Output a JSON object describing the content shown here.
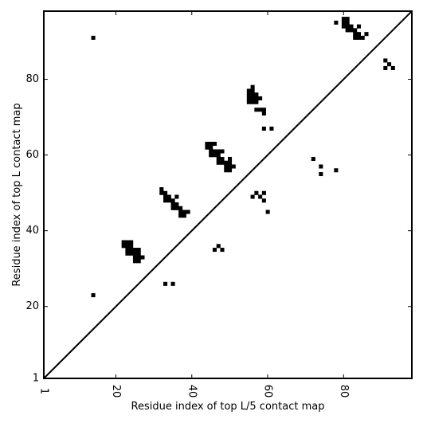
{
  "chart_data": {
    "type": "heatmap",
    "title": "",
    "xlabel": "Residue index of top L/5 contact map",
    "ylabel": "Residue index of top L contact map",
    "xlim": [
      1,
      98
    ],
    "ylim": [
      1,
      98
    ],
    "xticks": [
      1,
      20,
      40,
      60,
      80
    ],
    "yticks": [
      1,
      20,
      40,
      60,
      80
    ],
    "diagonal": true,
    "grid": false,
    "cell_color": "#000000",
    "upper_triangle_points": [
      [
        80,
        95
      ],
      [
        81,
        95
      ],
      [
        80,
        96
      ],
      [
        81,
        96
      ],
      [
        78,
        95
      ],
      [
        80,
        94
      ],
      [
        81,
        94
      ],
      [
        82,
        94
      ],
      [
        84,
        94
      ],
      [
        81,
        93
      ],
      [
        82,
        93
      ],
      [
        83,
        93
      ],
      [
        83,
        92
      ],
      [
        84,
        92
      ],
      [
        86,
        92
      ],
      [
        83,
        91
      ],
      [
        84,
        91
      ],
      [
        85,
        91
      ],
      [
        91,
        85
      ],
      [
        92,
        84
      ],
      [
        91,
        83
      ],
      [
        93,
        83
      ]
    ],
    "lower_triangle_points": [
      [
        14,
        91
      ],
      [
        14,
        23
      ],
      [
        22,
        37
      ],
      [
        23,
        37
      ],
      [
        24,
        37
      ],
      [
        22,
        36
      ],
      [
        23,
        36
      ],
      [
        24,
        36
      ],
      [
        23,
        35
      ],
      [
        24,
        35
      ],
      [
        25,
        35
      ],
      [
        26,
        35
      ],
      [
        23,
        34
      ],
      [
        24,
        34
      ],
      [
        25,
        34
      ],
      [
        26,
        34
      ],
      [
        25,
        33
      ],
      [
        26,
        33
      ],
      [
        27,
        33
      ],
      [
        25,
        32
      ],
      [
        26,
        32
      ],
      [
        33,
        26
      ],
      [
        35,
        26
      ],
      [
        32,
        51
      ],
      [
        32,
        50
      ],
      [
        33,
        50
      ],
      [
        33,
        49
      ],
      [
        34,
        49
      ],
      [
        36,
        49
      ],
      [
        33,
        48
      ],
      [
        34,
        48
      ],
      [
        35,
        48
      ],
      [
        35,
        47
      ],
      [
        36,
        47
      ],
      [
        35,
        46
      ],
      [
        36,
        46
      ],
      [
        37,
        46
      ],
      [
        37,
        45
      ],
      [
        38,
        45
      ],
      [
        39,
        45
      ],
      [
        37,
        44
      ],
      [
        38,
        44
      ],
      [
        44,
        63
      ],
      [
        45,
        63
      ],
      [
        46,
        63
      ],
      [
        44,
        62
      ],
      [
        45,
        62
      ],
      [
        45,
        61
      ],
      [
        46,
        61
      ],
      [
        47,
        61
      ],
      [
        48,
        61
      ],
      [
        45,
        60
      ],
      [
        46,
        60
      ],
      [
        47,
        60
      ],
      [
        47,
        59
      ],
      [
        48,
        59
      ],
      [
        50,
        59
      ],
      [
        47,
        58
      ],
      [
        48,
        58
      ],
      [
        49,
        58
      ],
      [
        50,
        58
      ],
      [
        49,
        57
      ],
      [
        50,
        57
      ],
      [
        51,
        57
      ],
      [
        49,
        56
      ],
      [
        50,
        56
      ],
      [
        47,
        36
      ],
      [
        46,
        35
      ],
      [
        48,
        35
      ],
      [
        56,
        78
      ],
      [
        55,
        77
      ],
      [
        56,
        77
      ],
      [
        55,
        76
      ],
      [
        56,
        76
      ],
      [
        57,
        76
      ],
      [
        55,
        75
      ],
      [
        56,
        75
      ],
      [
        57,
        75
      ],
      [
        58,
        75
      ],
      [
        55,
        74
      ],
      [
        56,
        74
      ],
      [
        57,
        74
      ],
      [
        57,
        72
      ],
      [
        58,
        72
      ],
      [
        59,
        72
      ],
      [
        59,
        71
      ],
      [
        59,
        67
      ],
      [
        61,
        67
      ],
      [
        57,
        50
      ],
      [
        59,
        50
      ],
      [
        56,
        49
      ],
      [
        58,
        49
      ],
      [
        59,
        48
      ],
      [
        60,
        45
      ],
      [
        72,
        59
      ],
      [
        74,
        57
      ],
      [
        78,
        56
      ],
      [
        74,
        55
      ]
    ]
  }
}
